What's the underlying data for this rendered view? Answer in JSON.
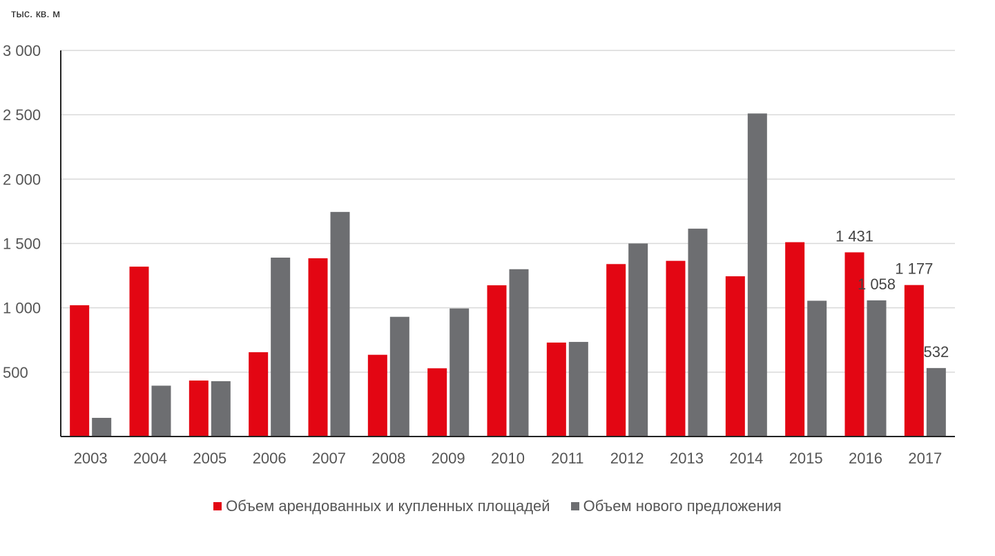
{
  "chart_data": {
    "type": "bar",
    "title": "",
    "ylabel": "тыс. кв. м",
    "xlabel": "",
    "ylim": [
      0,
      3000
    ],
    "yticks": [
      {
        "value": 500,
        "label": "500"
      },
      {
        "value": 1000,
        "label": "1 000"
      },
      {
        "value": 1500,
        "label": "1 500"
      },
      {
        "value": 2000,
        "label": "2 000"
      },
      {
        "value": 2500,
        "label": "2 500"
      },
      {
        "value": 3000,
        "label": "3 000"
      }
    ],
    "grid": true,
    "legend": "bottom",
    "categories": [
      "2003",
      "2004",
      "2005",
      "2006",
      "2007",
      "2008",
      "2009",
      "2010",
      "2011",
      "2012",
      "2013",
      "2014",
      "2015",
      "2016",
      "2017"
    ],
    "series": [
      {
        "name": "Объем арендованных и купленных площадей",
        "color": "#e30613",
        "values": [
          1020,
          1320,
          435,
          655,
          1385,
          635,
          530,
          1175,
          730,
          1340,
          1365,
          1245,
          1510,
          1431,
          1177
        ]
      },
      {
        "name": "Объем нового предложения",
        "color": "#6d6e71",
        "values": [
          145,
          395,
          430,
          1390,
          1745,
          930,
          995,
          1300,
          735,
          1500,
          1615,
          2510,
          1055,
          1058,
          532
        ]
      }
    ],
    "data_labels": [
      {
        "series": 0,
        "index": 13,
        "text": "1 431"
      },
      {
        "series": 1,
        "index": 13,
        "text": "1 058"
      },
      {
        "series": 0,
        "index": 14,
        "text": "1 177"
      },
      {
        "series": 1,
        "index": 14,
        "text": "532"
      }
    ]
  }
}
